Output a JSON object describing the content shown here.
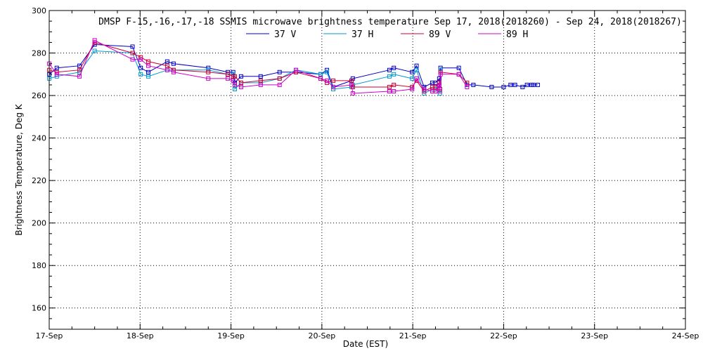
{
  "chart_data": {
    "type": "line",
    "title": "DMSP F-15,-16,-17,-18 SSMIS microwave brightness temperature Sep 17, 2018(2018260) - Sep 24, 2018(2018267)",
    "xlabel": "Date (EST)",
    "ylabel": "Brightness Temperature, Deg K",
    "x_ticks": [
      "17-Sep",
      "18-Sep",
      "19-Sep",
      "20-Sep",
      "21-Sep",
      "22-Sep",
      "23-Sep",
      "24-Sep"
    ],
    "y_ticks": [
      160,
      180,
      200,
      220,
      240,
      260,
      280,
      300
    ],
    "xlim": [
      "2018-09-17 00:00",
      "2018-09-24 00:00"
    ],
    "ylim": [
      150,
      300
    ],
    "grid": true,
    "legend_position": "top-center",
    "series": [
      {
        "name": "37 V",
        "color": "#0000c8",
        "x": [
          "2018-09-17 00:01",
          "2018-09-17 02:00",
          "2018-09-17 08:00",
          "2018-09-17 12:00",
          "2018-09-17 22:00",
          "2018-09-18 00:10",
          "2018-09-18 02:10",
          "2018-09-18 07:10",
          "2018-09-18 08:50",
          "2018-09-18 18:00",
          "2018-09-18 23:10",
          "2018-09-19 00:35",
          "2018-09-19 01:00",
          "2018-09-19 02:40",
          "2018-09-19 07:50",
          "2018-09-19 12:50",
          "2018-09-19 17:10",
          "2018-09-19 23:40",
          "2018-09-20 01:20",
          "2018-09-20 03:00",
          "2018-09-20 07:50",
          "2018-09-20 08:10",
          "2018-09-20 17:50",
          "2018-09-20 19:00",
          "2018-09-20 23:50",
          "2018-09-21 01:00",
          "2018-09-21 03:00",
          "2018-09-21 05:10",
          "2018-09-21 06:00",
          "2018-09-21 07:00",
          "2018-09-21 07:10",
          "2018-09-21 07:20",
          "2018-09-21 12:10",
          "2018-09-21 14:20",
          "2018-09-21 16:00",
          "2018-09-21 20:50",
          "2018-09-22 00:00",
          "2018-09-22 01:50",
          "2018-09-22 03:00",
          "2018-09-22 05:00",
          "2018-09-22 06:10",
          "2018-09-22 07:20",
          "2018-09-22 07:50",
          "2018-09-22 09:00"
        ],
        "y": [
          270,
          273,
          274,
          284,
          283,
          273,
          271,
          276,
          275,
          273,
          271,
          271,
          266,
          269,
          269,
          271,
          271,
          270,
          272,
          264,
          267,
          268,
          272,
          273,
          271,
          274,
          264,
          266,
          266,
          268,
          263,
          273,
          273,
          265,
          265,
          264,
          264,
          265,
          265,
          264,
          265,
          265,
          265,
          265
        ]
      },
      {
        "name": "37 H",
        "color": "#0099cc",
        "x": [
          "2018-09-17 00:01",
          "2018-09-17 02:00",
          "2018-09-17 08:00",
          "2018-09-17 12:00",
          "2018-09-17 22:00",
          "2018-09-18 00:10",
          "2018-09-18 02:10",
          "2018-09-18 07:10",
          "2018-09-18 08:50",
          "2018-09-18 18:00",
          "2018-09-18 23:10",
          "2018-09-19 00:35",
          "2018-09-19 01:00",
          "2018-09-19 02:40",
          "2018-09-19 07:50",
          "2018-09-19 12:50",
          "2018-09-19 17:10",
          "2018-09-19 23:40",
          "2018-09-20 01:20",
          "2018-09-20 03:00",
          "2018-09-20 07:50",
          "2018-09-20 08:10",
          "2018-09-20 17:50",
          "2018-09-20 19:00",
          "2018-09-20 23:50",
          "2018-09-21 01:00",
          "2018-09-21 03:00",
          "2018-09-21 05:10",
          "2018-09-21 06:00",
          "2018-09-21 07:00",
          "2018-09-21 07:10",
          "2018-09-21 07:20"
        ],
        "y": [
          268,
          269,
          271,
          281,
          280,
          270,
          269,
          272,
          272,
          272,
          270,
          270,
          263,
          266,
          266,
          268,
          272,
          270,
          271,
          263,
          264,
          265,
          269,
          270,
          268,
          272,
          261,
          263,
          263,
          265,
          261,
          272
        ]
      },
      {
        "name": "89 V",
        "color": "#cc0033",
        "x": [
          "2018-09-17 00:01",
          "2018-09-17 02:00",
          "2018-09-17 08:00",
          "2018-09-17 12:00",
          "2018-09-17 22:00",
          "2018-09-18 00:10",
          "2018-09-18 02:10",
          "2018-09-18 07:10",
          "2018-09-18 08:50",
          "2018-09-18 18:00",
          "2018-09-18 23:10",
          "2018-09-19 00:35",
          "2018-09-19 01:00",
          "2018-09-19 02:40",
          "2018-09-19 07:50",
          "2018-09-19 12:50",
          "2018-09-19 17:10",
          "2018-09-19 23:40",
          "2018-09-20 01:20",
          "2018-09-20 03:00",
          "2018-09-20 07:50",
          "2018-09-20 08:10",
          "2018-09-20 17:50",
          "2018-09-20 19:00",
          "2018-09-20 23:50",
          "2018-09-21 01:00",
          "2018-09-21 03:00",
          "2018-09-21 05:10",
          "2018-09-21 06:00",
          "2018-09-21 07:00",
          "2018-09-21 07:10",
          "2018-09-21 07:20",
          "2018-09-21 12:10",
          "2018-09-21 14:20"
        ],
        "y": [
          272,
          271,
          272,
          285,
          280,
          278,
          276,
          274,
          272,
          271,
          270,
          269,
          269,
          266,
          267,
          268,
          271,
          268,
          266,
          267,
          267,
          264,
          264,
          265,
          264,
          267,
          262,
          264,
          264,
          266,
          263,
          271,
          270,
          266
        ]
      },
      {
        "name": "89 H",
        "color": "#cc00cc",
        "x": [
          "2018-09-17 00:01",
          "2018-09-17 02:00",
          "2018-09-17 08:00",
          "2018-09-17 12:00",
          "2018-09-17 22:00",
          "2018-09-18 00:10",
          "2018-09-18 02:10",
          "2018-09-18 07:10",
          "2018-09-18 08:50",
          "2018-09-18 18:00",
          "2018-09-18 23:10",
          "2018-09-19 00:35",
          "2018-09-19 01:00",
          "2018-09-19 02:40",
          "2018-09-19 07:50",
          "2018-09-19 12:50",
          "2018-09-19 17:10",
          "2018-09-19 23:40",
          "2018-09-20 01:20",
          "2018-09-20 03:00",
          "2018-09-20 07:50",
          "2018-09-20 08:10",
          "2018-09-20 17:50",
          "2018-09-20 19:00",
          "2018-09-20 23:50",
          "2018-09-21 01:00",
          "2018-09-21 03:00",
          "2018-09-21 05:10",
          "2018-09-21 06:00",
          "2018-09-21 07:00",
          "2018-09-21 07:10",
          "2018-09-21 07:20",
          "2018-09-21 12:10",
          "2018-09-21 14:20"
        ],
        "y": [
          275,
          270,
          269,
          286,
          277,
          277,
          274,
          272,
          271,
          268,
          268,
          267,
          265,
          264,
          265,
          265,
          272,
          268,
          267,
          264,
          265,
          261,
          262,
          262,
          263,
          268,
          263,
          262,
          262,
          265,
          262,
          270,
          270,
          264
        ]
      }
    ]
  }
}
